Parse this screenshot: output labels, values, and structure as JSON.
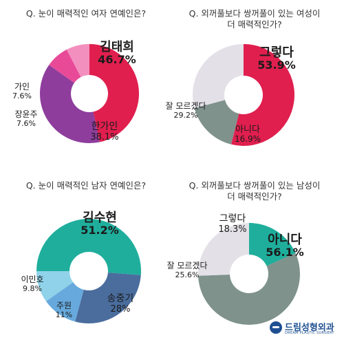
{
  "questions": {
    "q1": "Q. 눈이 매력적인 여자 연예인은?",
    "q2_line1": "Q. 외꺼풀보다 쌍꺼풀이 있는 여성이",
    "q2_line2": "더 매력적인가?",
    "q3": "Q. 눈이 매력적인 남자 연예인은?",
    "q4_line1": "Q. 외꺼풀보다 쌍꺼풀이 있는 남성이",
    "q4_line2": "더 매력적인가?"
  },
  "logo": {
    "name": "드림성형외과",
    "sub": "DREAM PLASTIC SURGERY"
  },
  "chart_data": [
    {
      "type": "pie",
      "title": "Q. 눈이 매력적인 여자 연예인은?",
      "slices": [
        {
          "label": "김태희",
          "value": 46.7,
          "display": "46.7%",
          "color": "#e01f4e"
        },
        {
          "label": "한가인",
          "value": 38.1,
          "display": "38.1%",
          "color": "#8e3d9d"
        },
        {
          "label": "장윤주",
          "value": 7.6,
          "display": "7.6%",
          "color": "#e84a98"
        },
        {
          "label": "가인",
          "value": 7.6,
          "display": "7.6%",
          "color": "#f38fbe"
        }
      ]
    },
    {
      "type": "pie",
      "title": "Q. 외꺼풀보다 쌍꺼풀이 있는 여성이 더 매력적인가?",
      "slices": [
        {
          "label": "그렇다",
          "value": 53.9,
          "display": "53.9%",
          "color": "#e01f4e"
        },
        {
          "label": "아니다",
          "value": 16.9,
          "display": "16.9%",
          "color": "#7f928c"
        },
        {
          "label": "잘 모르겠다",
          "value": 29.2,
          "display": "29.2%",
          "color": "#e3e1e7"
        }
      ]
    },
    {
      "type": "pie",
      "title": "Q. 눈이 매력적인 남자 연예인은?",
      "slices": [
        {
          "label": "김수현",
          "value": 51.2,
          "display": "51.2%",
          "color": "#1fae9c"
        },
        {
          "label": "송중기",
          "value": 28,
          "display": "28%",
          "color": "#4a6d9e"
        },
        {
          "label": "주원",
          "value": 11,
          "display": "11%",
          "color": "#67a9dc"
        },
        {
          "label": "이민호",
          "value": 9.8,
          "display": "9.8%",
          "color": "#8fd2ea"
        }
      ]
    },
    {
      "type": "pie",
      "title": "Q. 외꺼풀보다 쌍꺼풀이 있는 남성이 더 매력적인가?",
      "slices": [
        {
          "label": "그렇다",
          "value": 18.3,
          "display": "18.3%",
          "color": "#1fae9c"
        },
        {
          "label": "아니다",
          "value": 56.1,
          "display": "56.1%",
          "color": "#7f928c"
        },
        {
          "label": "잘 모르겠다",
          "value": 25.6,
          "display": "25.6%",
          "color": "#e3e1e7"
        }
      ]
    }
  ]
}
